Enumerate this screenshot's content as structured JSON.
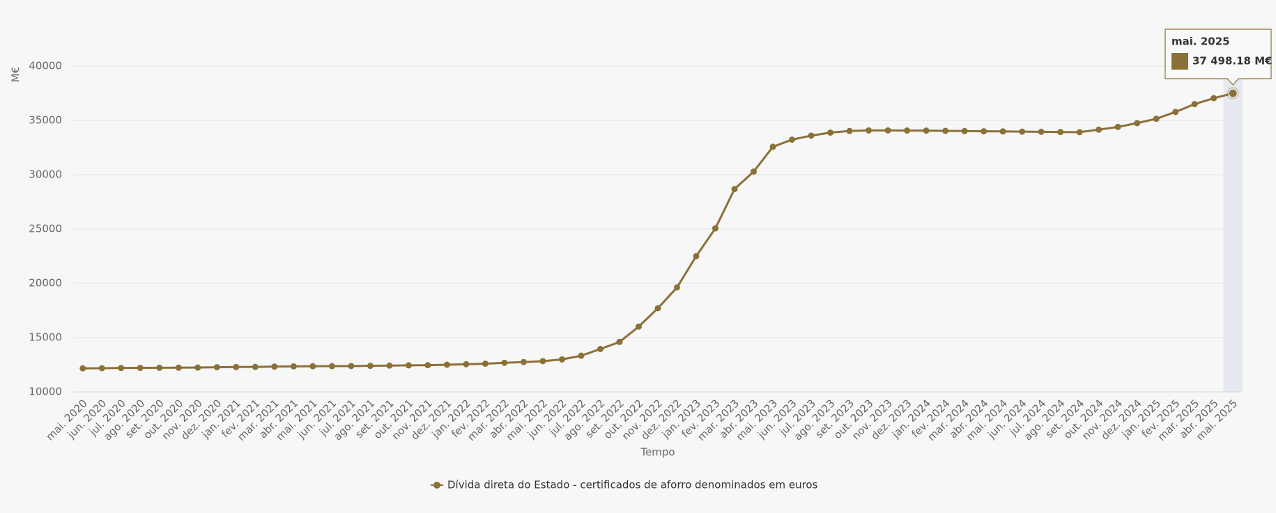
{
  "chart_data": {
    "type": "line",
    "y_axis_label": "M€",
    "x_axis_label": "Tempo",
    "categories": [
      "mai. 2020",
      "jun. 2020",
      "jul. 2020",
      "ago. 2020",
      "set. 2020",
      "out. 2020",
      "nov. 2020",
      "dez. 2020",
      "jan. 2021",
      "fev. 2021",
      "mar. 2021",
      "abr. 2021",
      "mai. 2021",
      "jun. 2021",
      "jul. 2021",
      "ago. 2021",
      "set. 2021",
      "out. 2021",
      "nov. 2021",
      "dez. 2021",
      "jan. 2022",
      "fev. 2022",
      "mar. 2022",
      "abr. 2022",
      "mai. 2022",
      "jun. 2022",
      "jul. 2022",
      "ago. 2022",
      "set. 2022",
      "out. 2022",
      "nov. 2022",
      "dez. 2022",
      "jan. 2023",
      "fev. 2023",
      "mar. 2023",
      "abr. 2023",
      "mai. 2023",
      "jun. 2023",
      "jul. 2023",
      "ago. 2023",
      "set. 2023",
      "out. 2023",
      "nov. 2023",
      "dez. 2023",
      "jan. 2024",
      "fev. 2024",
      "mar. 2024",
      "abr. 2024",
      "mai. 2024",
      "jun. 2024",
      "jul. 2024",
      "ago. 2024",
      "set. 2024",
      "out. 2024",
      "nov. 2024",
      "dez. 2024",
      "jan. 2025",
      "fev. 2025",
      "mar. 2025",
      "abr. 2025",
      "mai. 2025"
    ],
    "series": [
      {
        "name": "Dívida direta do Estado - certificados de aforro denominados em euros",
        "color": "#8b7037",
        "values": [
          12170,
          12180,
          12200,
          12210,
          12220,
          12230,
          12240,
          12270,
          12290,
          12300,
          12330,
          12350,
          12360,
          12370,
          12380,
          12400,
          12420,
          12440,
          12460,
          12500,
          12550,
          12600,
          12680,
          12750,
          12830,
          12990,
          13330,
          13950,
          14600,
          16010,
          17700,
          19620,
          22500,
          25060,
          28680,
          30290,
          32570,
          33230,
          33600,
          33880,
          34030,
          34080,
          34080,
          34070,
          34060,
          34040,
          34020,
          34000,
          33990,
          33970,
          33950,
          33930,
          33920,
          34150,
          34400,
          34750,
          35150,
          35780,
          36500,
          37050,
          37498.18
        ]
      }
    ],
    "tooltip_label": "37 498.18 M€",
    "ylim": [
      10000,
      40000
    ],
    "yticks": [
      10000,
      15000,
      20000,
      25000,
      30000,
      35000,
      40000
    ],
    "grid": true
  }
}
